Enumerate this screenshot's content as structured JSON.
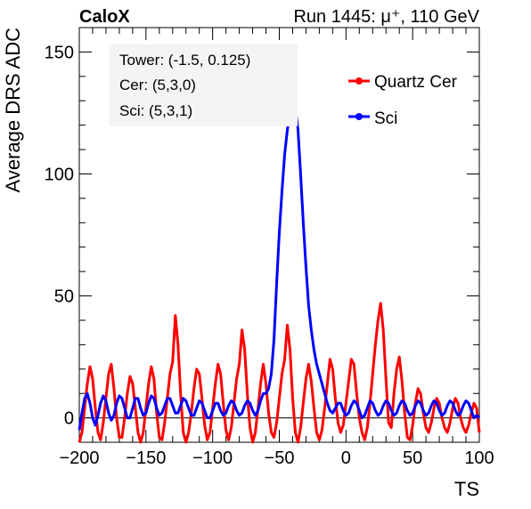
{
  "header": {
    "left_label": "CaloX",
    "right_label": "Run 1445: μ⁺, 110 GeV"
  },
  "annotations": {
    "tower": "Tower: (-1.5, 0.125)",
    "cer": "Cer: (5,3,0)",
    "sci": "Sci: (5,3,1)"
  },
  "chart_data": {
    "type": "line",
    "xlabel": "TS",
    "ylabel": "Average DRS ADC",
    "xlim": [
      -200,
      100
    ],
    "ylim": [
      -10,
      160
    ],
    "x_ticks": [
      -200,
      -150,
      -100,
      -50,
      0,
      50,
      100
    ],
    "y_ticks": [
      0,
      50,
      100,
      150
    ],
    "x_tick_labels": [
      "−200",
      "−150",
      "−100",
      "−50",
      "0",
      "50",
      "100"
    ],
    "y_tick_labels": [
      "0",
      "50",
      "100",
      "150"
    ],
    "grid": false,
    "legend_position": "top-right",
    "series": [
      {
        "name": "Quartz Cer",
        "color": "#ff0000",
        "x": [
          -200,
          -198,
          -196,
          -194,
          -192,
          -190,
          -188,
          -186,
          -184,
          -182,
          -180,
          -178,
          -176,
          -174,
          -172,
          -170,
          -168,
          -166,
          -164,
          -162,
          -160,
          -158,
          -156,
          -154,
          -152,
          -150,
          -148,
          -146,
          -144,
          -142,
          -140,
          -138,
          -136,
          -134,
          -132,
          -130,
          -128,
          -126,
          -124,
          -122,
          -120,
          -118,
          -116,
          -114,
          -112,
          -110,
          -108,
          -106,
          -104,
          -102,
          -100,
          -98,
          -96,
          -94,
          -92,
          -90,
          -88,
          -86,
          -84,
          -82,
          -80,
          -78,
          -76,
          -74,
          -72,
          -70,
          -68,
          -66,
          -64,
          -62,
          -60,
          -58,
          -56,
          -54,
          -52,
          -50,
          -48,
          -46,
          -44,
          -42,
          -40,
          -38,
          -36,
          -34,
          -32,
          -30,
          -28,
          -26,
          -24,
          -22,
          -20,
          -18,
          -16,
          -14,
          -12,
          -10,
          -8,
          -6,
          -4,
          -2,
          0,
          2,
          4,
          6,
          8,
          10,
          12,
          14,
          16,
          18,
          20,
          22,
          24,
          26,
          28,
          30,
          32,
          34,
          36,
          38,
          40,
          42,
          44,
          46,
          48,
          50,
          52,
          54,
          56,
          58,
          60,
          62,
          64,
          66,
          68,
          70,
          72,
          74,
          76,
          78,
          80,
          82,
          84,
          86,
          88,
          90,
          92,
          94,
          96,
          98,
          100
        ],
        "values": [
          -10,
          -6,
          4,
          14,
          21,
          16,
          4,
          -6,
          -9,
          -2,
          8,
          18,
          22,
          12,
          0,
          -8,
          -8,
          0,
          10,
          17,
          14,
          4,
          -6,
          -10,
          -6,
          4,
          14,
          21,
          16,
          2,
          -8,
          -9,
          -2,
          8,
          18,
          23,
          42,
          30,
          10,
          -6,
          -10,
          -6,
          2,
          12,
          20,
          18,
          8,
          -3,
          -9,
          -6,
          4,
          14,
          22,
          18,
          6,
          -5,
          -9,
          -4,
          6,
          16,
          22,
          36,
          28,
          10,
          -4,
          -10,
          -6,
          4,
          14,
          22,
          14,
          2,
          -6,
          -8,
          -2,
          8,
          18,
          24,
          38,
          28,
          8,
          -6,
          -10,
          -4,
          6,
          16,
          22,
          15,
          4,
          -6,
          -9,
          -5,
          4,
          14,
          24,
          20,
          8,
          -2,
          -6,
          -3,
          6,
          15,
          24,
          22,
          10,
          0,
          -6,
          -9,
          -4,
          6,
          18,
          30,
          40,
          47,
          36,
          16,
          -2,
          -4,
          10,
          20,
          25,
          15,
          2,
          -8,
          -9,
          -3,
          6,
          12,
          10,
          2,
          -4,
          -6,
          -2,
          4,
          8,
          6,
          0,
          -4,
          -6,
          -2,
          4,
          8,
          6,
          0,
          -4,
          -6,
          -3,
          2,
          6,
          4,
          -6
        ]
      },
      {
        "name": "Sci",
        "color": "#0000ff",
        "x": [
          -200,
          -198,
          -196,
          -194,
          -192,
          -190,
          -188,
          -186,
          -184,
          -182,
          -180,
          -178,
          -176,
          -174,
          -172,
          -170,
          -168,
          -166,
          -164,
          -162,
          -160,
          -158,
          -156,
          -154,
          -152,
          -150,
          -148,
          -146,
          -144,
          -142,
          -140,
          -138,
          -136,
          -134,
          -132,
          -130,
          -128,
          -126,
          -124,
          -122,
          -120,
          -118,
          -116,
          -114,
          -112,
          -110,
          -108,
          -106,
          -104,
          -102,
          -100,
          -98,
          -96,
          -94,
          -92,
          -90,
          -88,
          -86,
          -84,
          -82,
          -80,
          -78,
          -76,
          -74,
          -72,
          -70,
          -68,
          -66,
          -64,
          -62,
          -60,
          -58,
          -56,
          -54,
          -52,
          -50,
          -48,
          -46,
          -44,
          -42,
          -40,
          -38,
          -36,
          -34,
          -32,
          -30,
          -28,
          -26,
          -24,
          -22,
          -20,
          -18,
          -16,
          -14,
          -12,
          -10,
          -8,
          -6,
          -4,
          -2,
          0,
          2,
          4,
          6,
          8,
          10,
          12,
          14,
          16,
          18,
          20,
          22,
          24,
          26,
          28,
          30,
          32,
          34,
          36,
          38,
          40,
          42,
          44,
          46,
          48,
          50,
          52,
          54,
          56,
          58,
          60,
          62,
          64,
          66,
          68,
          70,
          72,
          74,
          76,
          78,
          80,
          82,
          84,
          86,
          88,
          90,
          92,
          94,
          96,
          98,
          100
        ],
        "values": [
          -5,
          2,
          8,
          10,
          6,
          0,
          -3,
          1,
          6,
          9,
          7,
          2,
          -1,
          1,
          6,
          9,
          8,
          4,
          0,
          0,
          4,
          8,
          8,
          4,
          1,
          2,
          6,
          9,
          8,
          4,
          1,
          2,
          5,
          8,
          8,
          5,
          2,
          2,
          5,
          8,
          7,
          4,
          1,
          1,
          4,
          7,
          6,
          3,
          0,
          0,
          3,
          6,
          6,
          3,
          1,
          2,
          5,
          7,
          6,
          3,
          1,
          2,
          5,
          7,
          6,
          3,
          1,
          3,
          7,
          10,
          10,
          12,
          18,
          32,
          55,
          76,
          93,
          108,
          118,
          125,
          126,
          127,
          118,
          100,
          80,
          62,
          46,
          36,
          28,
          22,
          18,
          14,
          10,
          6,
          3,
          2,
          4,
          6,
          6,
          3,
          1,
          2,
          5,
          7,
          6,
          3,
          0,
          1,
          4,
          7,
          6,
          3,
          1,
          2,
          5,
          7,
          6,
          3,
          1,
          2,
          5,
          7,
          6,
          3,
          1,
          2,
          5,
          7,
          6,
          3,
          1,
          2,
          5,
          7,
          6,
          3,
          1,
          2,
          5,
          7,
          6,
          3,
          1,
          2,
          5,
          7,
          6,
          3,
          0,
          1,
          0
        ]
      }
    ]
  }
}
